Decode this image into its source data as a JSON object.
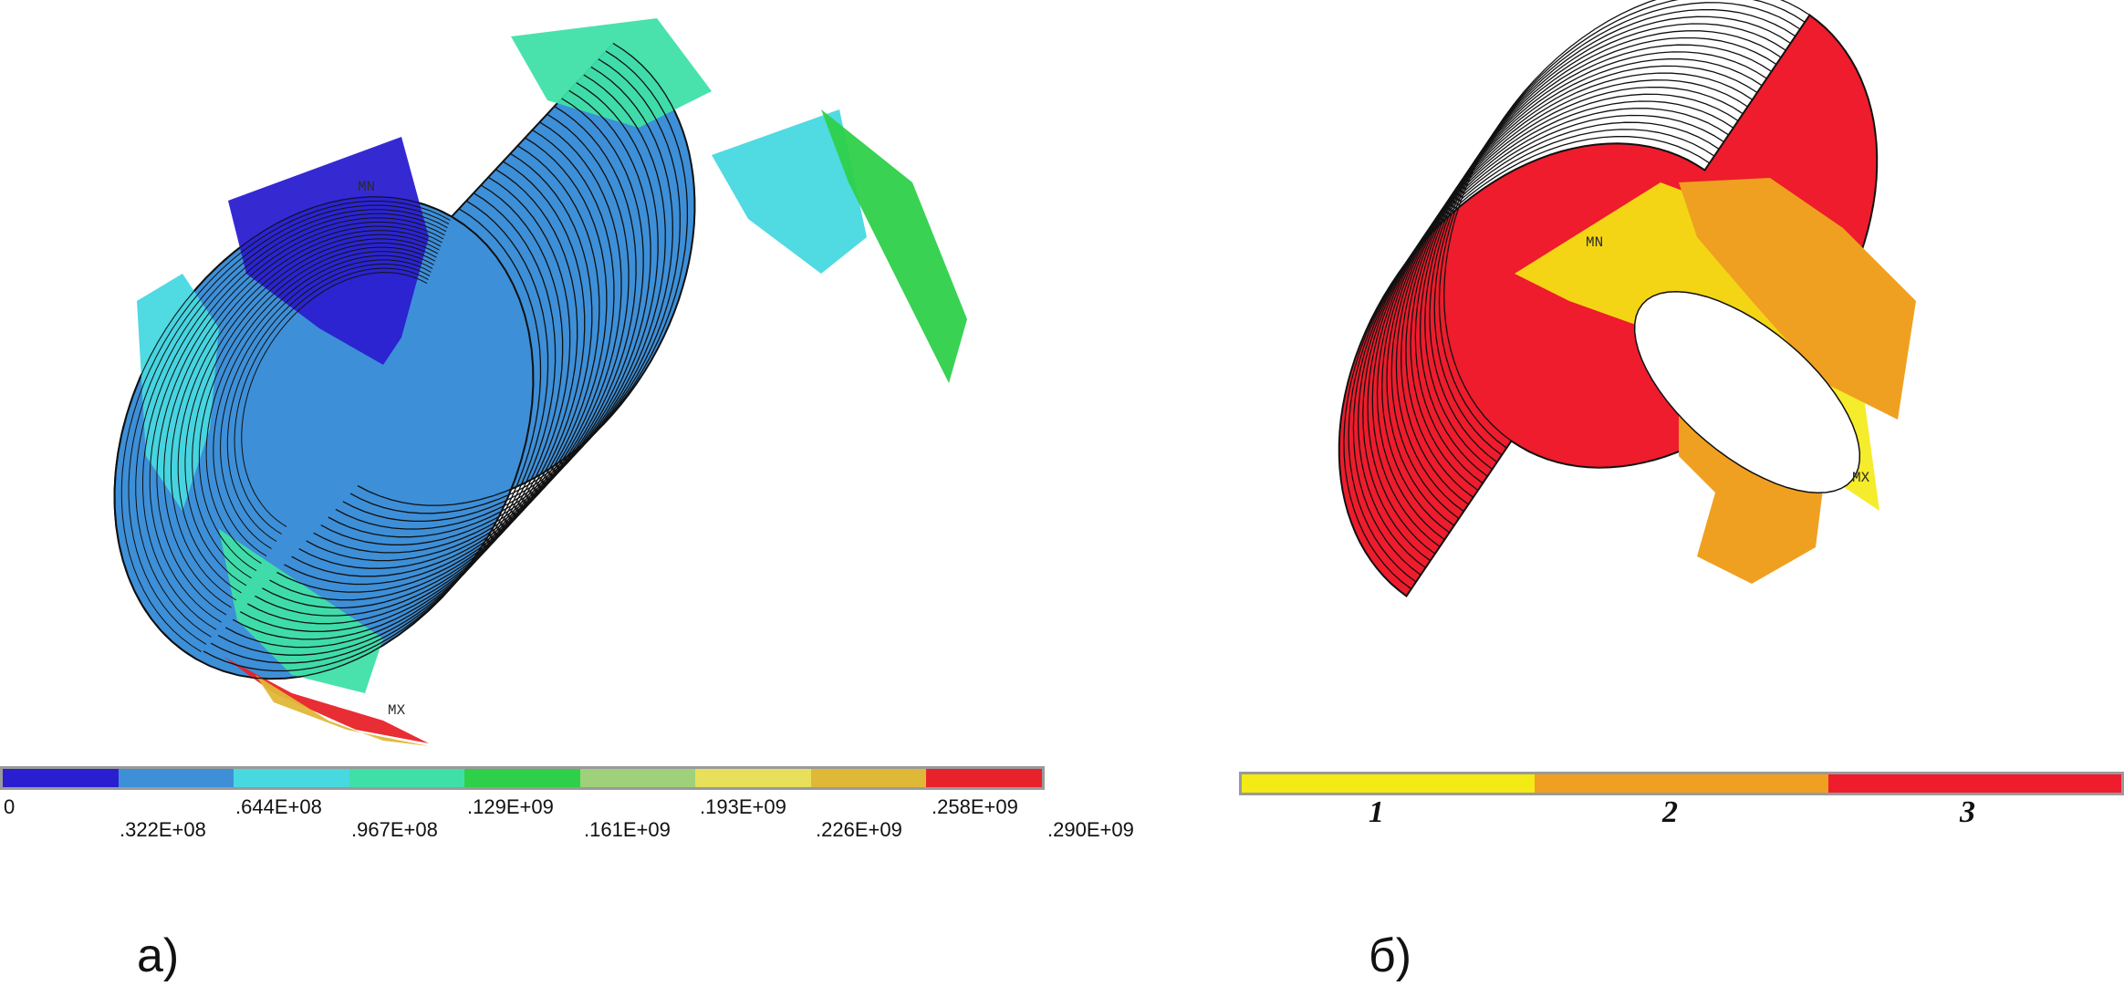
{
  "panel_a": {
    "caption": "а)",
    "colors": [
      "#2a1fd0",
      "#3d8fd8",
      "#47d8e0",
      "#3fe0a8",
      "#2ed04a",
      "#9fd07a",
      "#e8e05a",
      "#e0b838",
      "#e8222a"
    ],
    "tick_labels": [
      "0",
      ".322E+08",
      ".644E+08",
      ".967E+08",
      ".129E+09",
      ".161E+09",
      ".193E+09",
      ".226E+09",
      ".258E+09",
      ".290E+09"
    ],
    "node_labels": {
      "mn": "MN",
      "mx": "MX"
    }
  },
  "panel_b": {
    "caption": "б)",
    "colors": [
      "#f4ea14",
      "#f0a020",
      "#ee1c2c"
    ],
    "categories": [
      "1",
      "2",
      "3"
    ],
    "node_labels": {
      "mn": "MN",
      "mx": "MX"
    }
  }
}
